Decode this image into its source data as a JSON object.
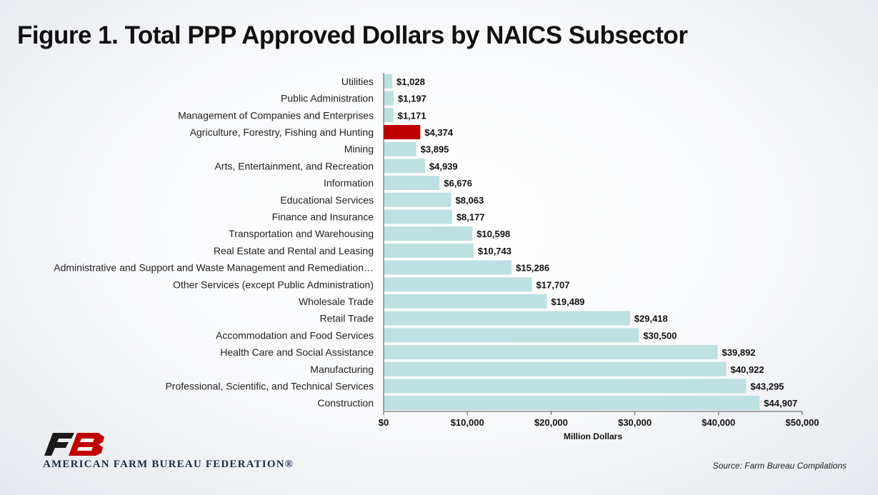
{
  "title": "Figure 1. Total PPP Approved Dollars by NAICS Subsector",
  "source": "Source: Farm Bureau Compilations",
  "organization": "AMERICAN FARM BUREAU FEDERATION®",
  "logo": {
    "icon": "fb-logo-icon",
    "text": "FB"
  },
  "colors": {
    "bar": "#bde0e2",
    "highlight": "#c00000",
    "text": "#111111"
  },
  "chart_data": {
    "type": "bar",
    "orientation": "horizontal",
    "categories": [
      "Utilities",
      "Public Administration",
      "Management of Companies and Enterprises",
      "Agriculture, Forestry, Fishing and Hunting",
      "Mining",
      "Arts, Entertainment, and Recreation",
      "Information",
      "Educational Services",
      "Finance and Insurance",
      "Transportation and Warehousing",
      "Real Estate and Rental and Leasing",
      "Administrative and Support and Waste Management and Remediation…",
      "Other Services (except Public Administration)",
      "Wholesale Trade",
      "Retail Trade",
      "Accommodation and Food Services",
      "Health Care and Social Assistance",
      "Manufacturing",
      "Professional, Scientific, and Technical Services",
      "Construction"
    ],
    "values": [
      1028,
      1197,
      1171,
      4374,
      3895,
      4939,
      6676,
      8063,
      8177,
      10598,
      10743,
      15286,
      17707,
      19489,
      29418,
      30500,
      39892,
      40922,
      43295,
      44907
    ],
    "value_labels": [
      "$1,028",
      "$1,197",
      "$1,171",
      "$4,374",
      "$3,895",
      "$4,939",
      "$6,676",
      "$8,063",
      "$8,177",
      "$10,598",
      "$10,743",
      "$15,286",
      "$17,707",
      "$19,489",
      "$29,418",
      "$30,500",
      "$39,892",
      "$40,922",
      "$43,295",
      "$44,907"
    ],
    "highlight": "Agriculture, Forestry, Fishing and Hunting",
    "xlabel": "Million Dollars",
    "xlim": [
      0,
      50000
    ],
    "xticks": [
      0,
      10000,
      20000,
      30000,
      40000,
      50000
    ],
    "xtick_labels": [
      "$0",
      "$10,000",
      "$20,000",
      "$30,000",
      "$40,000",
      "$50,000"
    ],
    "grid": false,
    "legend": "none"
  }
}
